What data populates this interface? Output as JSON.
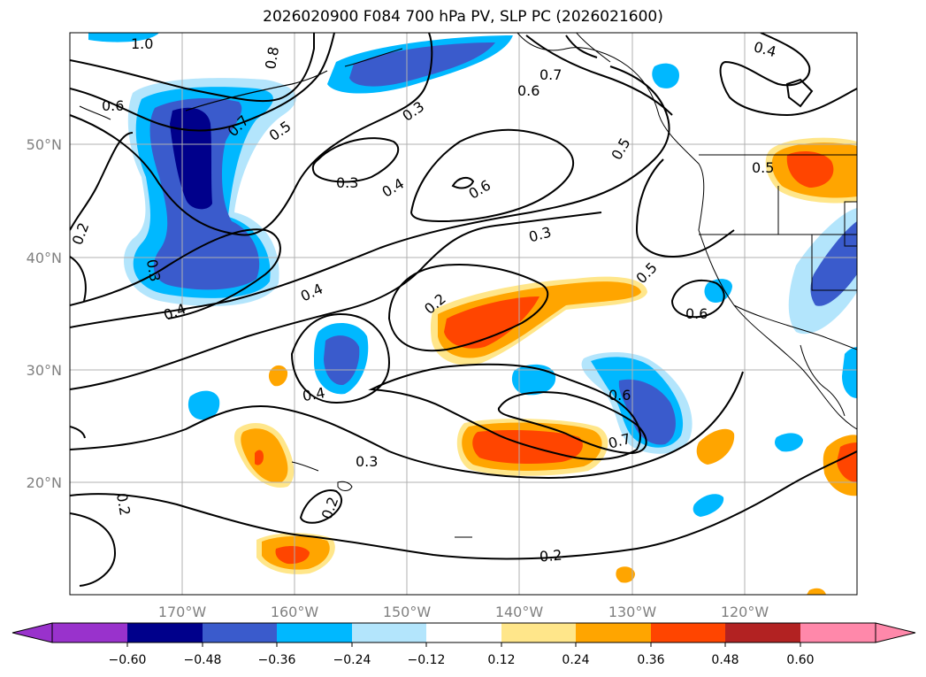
{
  "title": "2026020900 F084 700 hPa PV, SLP PC (2026021600)",
  "lat_labels": [
    "50°N",
    "40°N",
    "30°N",
    "20°N"
  ],
  "lon_labels": [
    "170°W",
    "160°W",
    "150°W",
    "140°W",
    "130°W",
    "120°W"
  ],
  "colorbar": {
    "ticks": [
      "−0.60",
      "−0.48",
      "−0.36",
      "−0.24",
      "−0.12",
      "0.12",
      "0.24",
      "0.36",
      "0.48",
      "0.60"
    ],
    "colors": [
      "#9932cc",
      "#00008b",
      "#3a5bcc",
      "#00b8ff",
      "#b3e5fc",
      "#ffffff",
      "#ffe68a",
      "#ffa500",
      "#ff4500",
      "#b22222",
      "#ff88aa"
    ]
  },
  "contour_labels": [
    "1.0",
    "0.8",
    "0.6",
    "0.7",
    "0.5",
    "0.3",
    "0.7",
    "0.6",
    "0.4",
    "0.5",
    "0.2",
    "0.3",
    "0.4",
    "0.3",
    "0.6",
    "0.3",
    "0.4",
    "0.4",
    "0.5",
    "0.2",
    "0.5",
    "0.6",
    "0.4",
    "0.6",
    "0.7",
    "0.3",
    "0.2",
    "0.2",
    "0.2"
  ]
}
